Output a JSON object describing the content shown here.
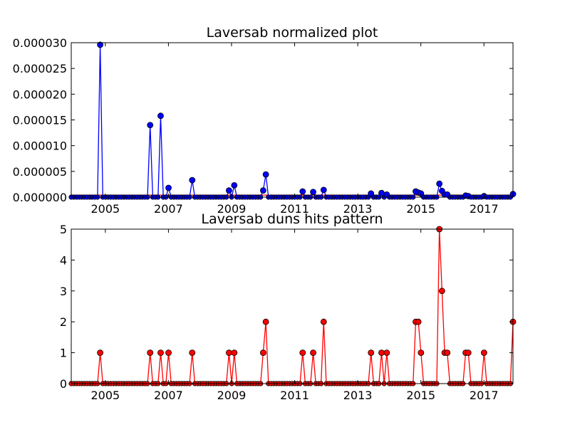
{
  "chart_data": [
    {
      "type": "line",
      "title": "Laversab normalized plot",
      "xlabel": "",
      "ylabel": "",
      "xlim": [
        2003.92,
        2017.92
      ],
      "ylim": [
        0,
        3e-05
      ],
      "yticks": [
        "0.000000",
        "0.000005",
        "0.000010",
        "0.000015",
        "0.000020",
        "0.000025",
        "0.000030"
      ],
      "xticks": [
        "2005",
        "2007",
        "2009",
        "2011",
        "2013",
        "2015",
        "2017"
      ],
      "grid": false,
      "legend": "none",
      "colors": {
        "line": "#0000ff",
        "marker": "#0000ff",
        "flat": "#ff0000"
      },
      "series": [
        {
          "points": [
            [
              2004.83,
              2.96e-05
            ],
            [
              2006.38,
              1.4e-05
            ],
            [
              2006.72,
              1.58e-05
            ],
            [
              2006.98,
              1.8e-06
            ],
            [
              2007.78,
              3.3e-06
            ],
            [
              2008.95,
              1.3e-06
            ],
            [
              2009.12,
              2.3e-06
            ],
            [
              2009.97,
              1.3e-06
            ],
            [
              2010.12,
              4.4e-06
            ],
            [
              2011.28,
              1.1e-06
            ],
            [
              2011.55,
              1e-06
            ],
            [
              2011.92,
              1.4e-06
            ],
            [
              2013.43,
              7e-07
            ],
            [
              2013.73,
              8e-07
            ],
            [
              2013.9,
              5e-07
            ],
            [
              2014.83,
              1.1e-06
            ],
            [
              2014.92,
              9e-07
            ],
            [
              2015.02,
              7e-07
            ],
            [
              2015.6,
              2.6e-06
            ],
            [
              2015.68,
              1.2e-06
            ],
            [
              2015.77,
              5e-07
            ],
            [
              2015.85,
              5e-07
            ],
            [
              2016.43,
              3e-07
            ],
            [
              2016.52,
              2e-07
            ],
            [
              2017.0,
              2e-07
            ],
            [
              2017.92,
              6e-07
            ]
          ]
        }
      ]
    },
    {
      "type": "line",
      "title": "Laversab duns hits pattern",
      "xlabel": "",
      "ylabel": "",
      "xlim": [
        2003.92,
        2017.92
      ],
      "ylim": [
        0,
        5
      ],
      "yticks": [
        "0",
        "1",
        "2",
        "3",
        "4",
        "5"
      ],
      "xticks": [
        "2005",
        "2007",
        "2009",
        "2011",
        "2013",
        "2015",
        "2017"
      ],
      "grid": false,
      "legend": "none",
      "colors": {
        "line": "#ff0000",
        "marker": "#ff0000"
      },
      "series": [
        {
          "points": [
            [
              2004.83,
              1
            ],
            [
              2006.38,
              1
            ],
            [
              2006.72,
              1
            ],
            [
              2006.98,
              1
            ],
            [
              2007.78,
              1
            ],
            [
              2008.95,
              1
            ],
            [
              2009.12,
              1
            ],
            [
              2009.97,
              1
            ],
            [
              2010.12,
              2
            ],
            [
              2011.28,
              1
            ],
            [
              2011.55,
              1
            ],
            [
              2011.92,
              2
            ],
            [
              2013.43,
              1
            ],
            [
              2013.73,
              1
            ],
            [
              2013.9,
              1
            ],
            [
              2014.83,
              2
            ],
            [
              2014.92,
              2
            ],
            [
              2015.02,
              1
            ],
            [
              2015.6,
              5
            ],
            [
              2015.68,
              3
            ],
            [
              2015.77,
              1
            ],
            [
              2015.85,
              1
            ],
            [
              2016.43,
              1
            ],
            [
              2016.52,
              1
            ],
            [
              2017.0,
              1
            ],
            [
              2017.92,
              2
            ]
          ]
        }
      ]
    }
  ]
}
